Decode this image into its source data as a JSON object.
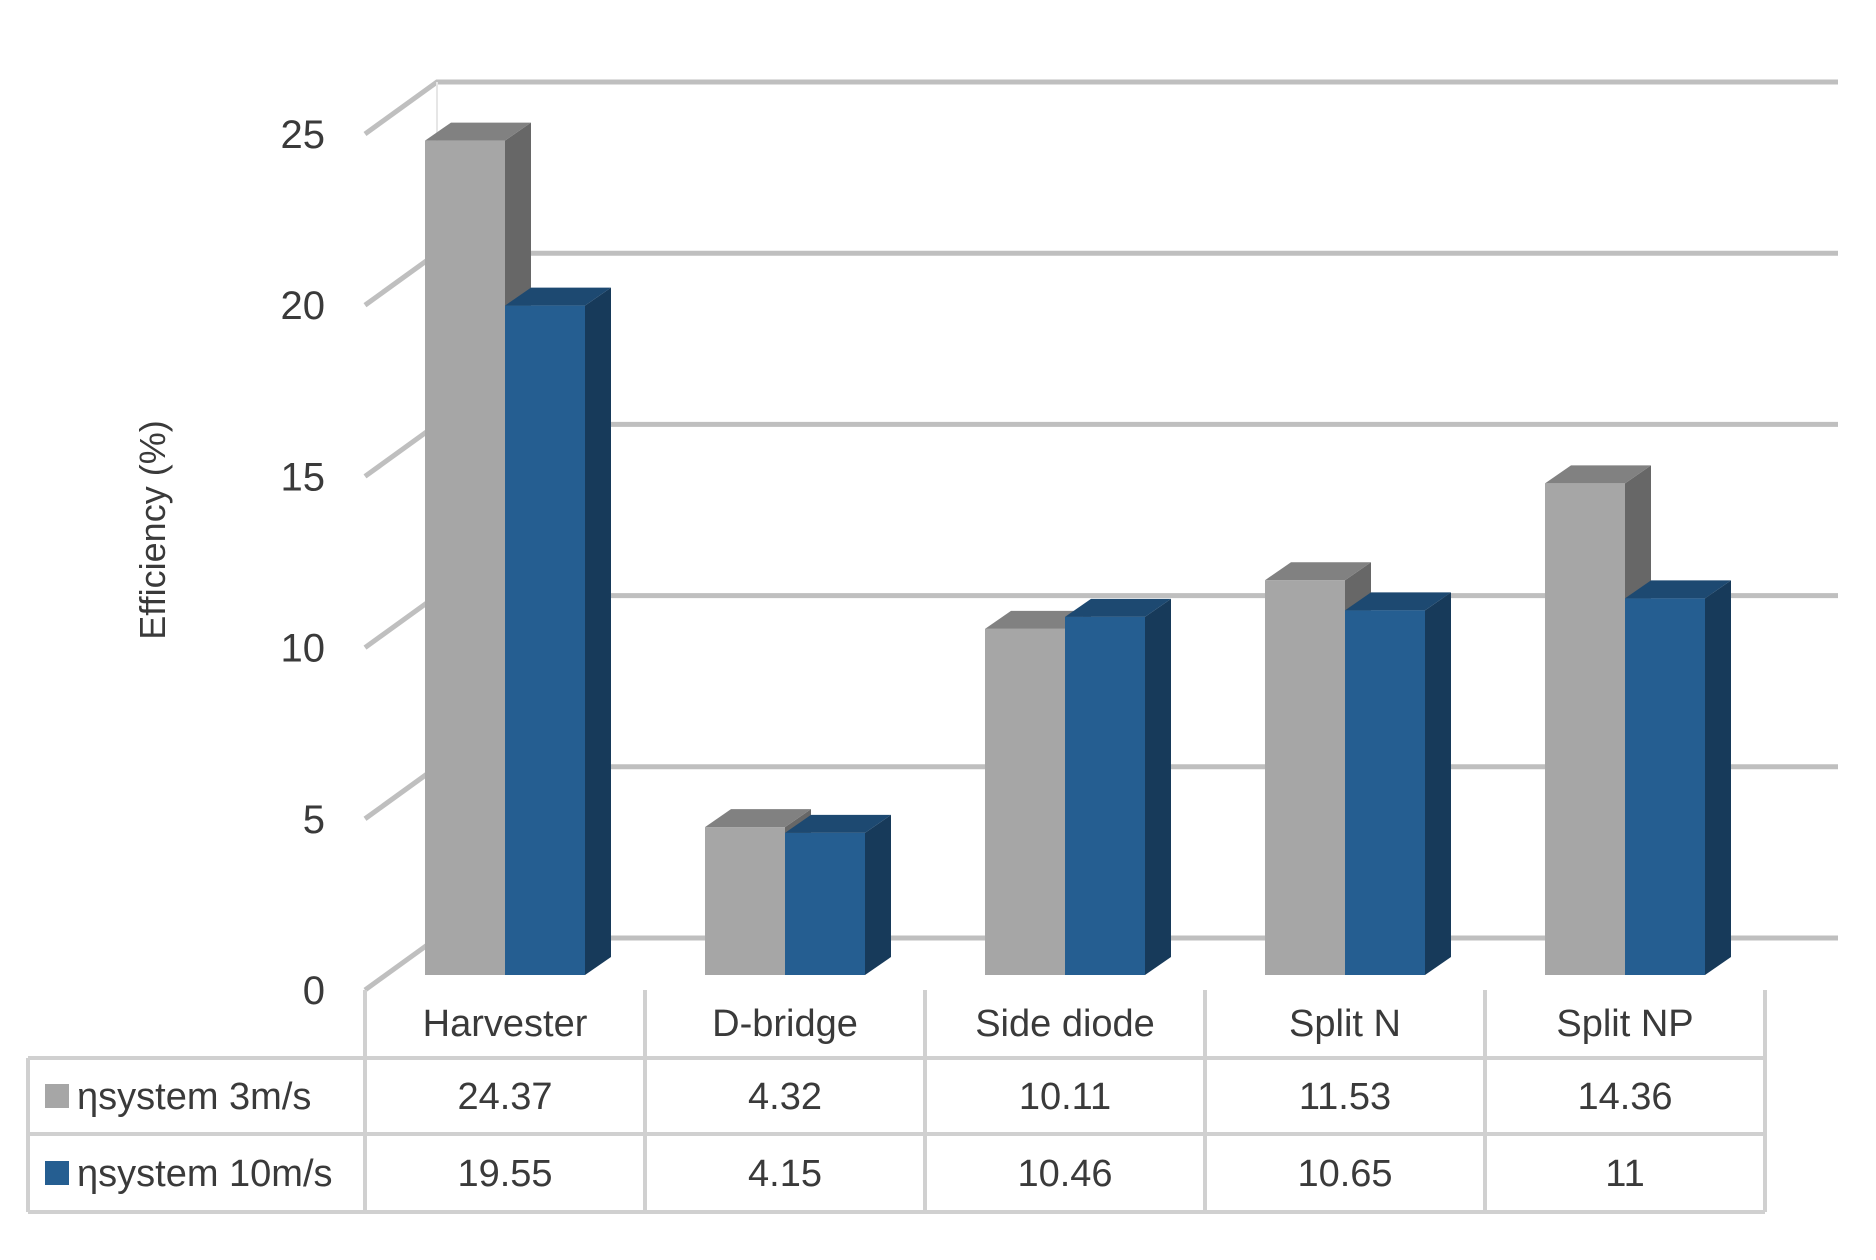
{
  "chart_data": {
    "type": "bar",
    "ylabel": "Efficiency (%)",
    "ylim": [
      0,
      25
    ],
    "yticks": [
      0,
      5,
      10,
      15,
      20,
      25
    ],
    "categories": [
      "Harvester",
      "D-bridge",
      "Side diode",
      "Split N",
      "Split NP"
    ],
    "series": [
      {
        "name": "ηsystem 3m/s",
        "values": [
          24.37,
          4.32,
          10.11,
          11.53,
          14.36
        ],
        "color": "#a6a6a6"
      },
      {
        "name": "ηsystem 10m/s",
        "values": [
          19.55,
          4.15,
          10.46,
          10.65,
          11
        ],
        "color": "#255e91"
      }
    ],
    "labels": {
      "s0": [
        "24.37",
        "4.32",
        "10.11",
        "11.53",
        "14.36"
      ],
      "s1": [
        "19.55",
        "4.15",
        "10.46",
        "10.65",
        "11"
      ]
    },
    "grid": true,
    "data_table": true,
    "style": "3d-column"
  }
}
